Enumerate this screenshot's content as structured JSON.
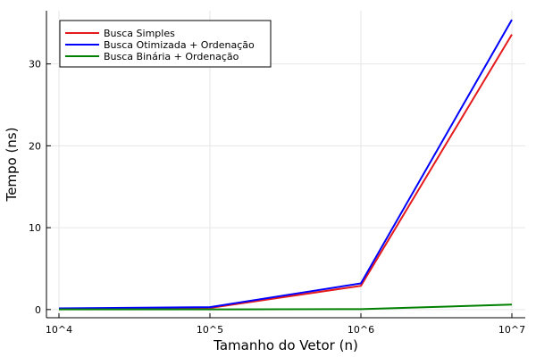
{
  "chart_data": {
    "type": "line",
    "categories": [
      "10^4",
      "10^5",
      "10^6",
      "10^7"
    ],
    "xlabel": "Tamanho do Vetor (n)",
    "ylabel": "Tempo (ns)",
    "ylim": [
      -1.0,
      36.5
    ],
    "yticks": [
      0,
      10,
      20,
      30
    ],
    "grid": true,
    "legend_position": "top-left",
    "series": [
      {
        "name": "Busca Simples",
        "color": "#e41a1c",
        "values": [
          0.05,
          0.2,
          2.9,
          33.6
        ]
      },
      {
        "name": "Busca Otimizada + Ordenação",
        "color": "#0000ff",
        "values": [
          0.15,
          0.3,
          3.2,
          35.4
        ]
      },
      {
        "name": "Busca Binária + Ordenação",
        "color": "#008000",
        "values": [
          0.02,
          0.02,
          0.05,
          0.6
        ]
      }
    ]
  }
}
